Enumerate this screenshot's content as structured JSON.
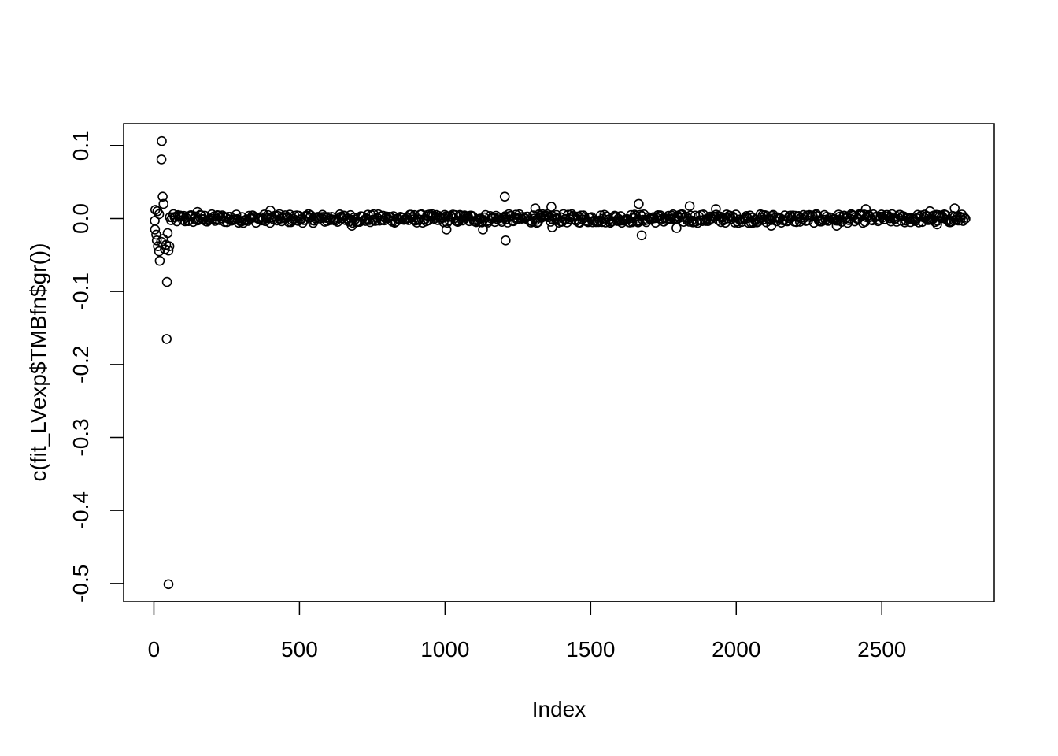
{
  "chart_data": {
    "type": "scatter",
    "title": "",
    "xlabel": "Index",
    "ylabel": "c(fit_LVexp$TMBfn$gr())",
    "xlim": [
      -104,
      2886
    ],
    "ylim": [
      -0.525,
      0.13
    ],
    "xticks": [
      0,
      500,
      1000,
      1500,
      2000,
      2500
    ],
    "xtick_labels": [
      "0",
      "500",
      "1000",
      "1500",
      "2000",
      "2500"
    ],
    "yticks": [
      0.1,
      0.0,
      -0.1,
      -0.2,
      -0.3,
      -0.4,
      -0.5
    ],
    "ytick_labels": [
      "0.1",
      "0.0",
      "-0.1",
      "-0.2",
      "-0.3",
      "-0.4",
      "-0.5"
    ],
    "grid": false,
    "legend": "none",
    "marker": "open-circle",
    "n_points": 2790,
    "band_halfwidth": 0.006,
    "points": [
      [
        27,
        0.106
      ],
      [
        26,
        0.081
      ],
      [
        30,
        0.03
      ],
      [
        33,
        0.02
      ],
      [
        5,
        0.012
      ],
      [
        12,
        0.01
      ],
      [
        18,
        0.006
      ],
      [
        3,
        -0.003
      ],
      [
        4,
        -0.015
      ],
      [
        8,
        -0.022
      ],
      [
        10,
        -0.03
      ],
      [
        14,
        -0.038
      ],
      [
        18,
        -0.045
      ],
      [
        20,
        -0.058
      ],
      [
        25,
        -0.032
      ],
      [
        32,
        -0.028
      ],
      [
        38,
        -0.042
      ],
      [
        42,
        -0.036
      ],
      [
        45,
        -0.087
      ],
      [
        47,
        -0.02
      ],
      [
        50,
        -0.044
      ],
      [
        53,
        -0.038
      ],
      [
        44,
        -0.165
      ],
      [
        50,
        -0.501
      ],
      [
        1205,
        0.03
      ],
      [
        1208,
        -0.03
      ],
      [
        1130,
        -0.015
      ],
      [
        1005,
        -0.015
      ],
      [
        1310,
        0.014
      ],
      [
        1365,
        0.016
      ],
      [
        1368,
        -0.012
      ],
      [
        1665,
        0.02
      ],
      [
        1675,
        -0.023
      ],
      [
        1840,
        0.017
      ],
      [
        1930,
        0.013
      ],
      [
        1795,
        -0.013
      ],
      [
        2120,
        -0.01
      ],
      [
        2345,
        -0.01
      ],
      [
        2445,
        0.013
      ],
      [
        2750,
        0.014
      ],
      [
        2665,
        0.01
      ],
      [
        2690,
        -0.008
      ],
      [
        680,
        -0.01
      ],
      [
        400,
        0.011
      ],
      [
        150,
        0.009
      ]
    ]
  }
}
